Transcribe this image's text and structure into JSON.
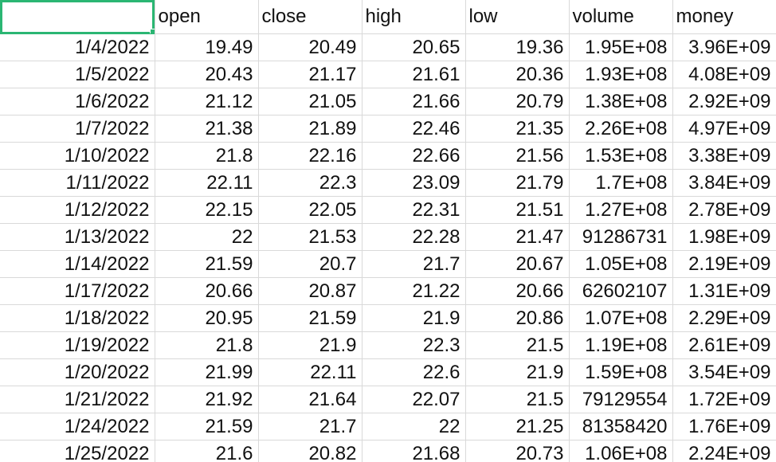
{
  "columns": [
    "",
    "open",
    "close",
    "high",
    "low",
    "volume",
    "money"
  ],
  "rows": [
    [
      "1/4/2022",
      "19.49",
      "20.49",
      "20.65",
      "19.36",
      "1.95E+08",
      "3.96E+09"
    ],
    [
      "1/5/2022",
      "20.43",
      "21.17",
      "21.61",
      "20.36",
      "1.93E+08",
      "4.08E+09"
    ],
    [
      "1/6/2022",
      "21.12",
      "21.05",
      "21.66",
      "20.79",
      "1.38E+08",
      "2.92E+09"
    ],
    [
      "1/7/2022",
      "21.38",
      "21.89",
      "22.46",
      "21.35",
      "2.26E+08",
      "4.97E+09"
    ],
    [
      "1/10/2022",
      "21.8",
      "22.16",
      "22.66",
      "21.56",
      "1.53E+08",
      "3.38E+09"
    ],
    [
      "1/11/2022",
      "22.11",
      "22.3",
      "23.09",
      "21.79",
      "1.7E+08",
      "3.84E+09"
    ],
    [
      "1/12/2022",
      "22.15",
      "22.05",
      "22.31",
      "21.51",
      "1.27E+08",
      "2.78E+09"
    ],
    [
      "1/13/2022",
      "22",
      "21.53",
      "22.28",
      "21.47",
      "91286731",
      "1.98E+09"
    ],
    [
      "1/14/2022",
      "21.59",
      "20.7",
      "21.7",
      "20.67",
      "1.05E+08",
      "2.19E+09"
    ],
    [
      "1/17/2022",
      "20.66",
      "20.87",
      "21.22",
      "20.66",
      "62602107",
      "1.31E+09"
    ],
    [
      "1/18/2022",
      "20.95",
      "21.59",
      "21.9",
      "20.86",
      "1.07E+08",
      "2.29E+09"
    ],
    [
      "1/19/2022",
      "21.8",
      "21.9",
      "22.3",
      "21.5",
      "1.19E+08",
      "2.61E+09"
    ],
    [
      "1/20/2022",
      "21.99",
      "22.11",
      "22.6",
      "21.9",
      "1.59E+08",
      "3.54E+09"
    ],
    [
      "1/21/2022",
      "21.92",
      "21.64",
      "22.07",
      "21.5",
      "79129554",
      "1.72E+09"
    ],
    [
      "1/24/2022",
      "21.59",
      "21.7",
      "22",
      "21.25",
      "81358420",
      "1.76E+09"
    ],
    [
      "1/25/2022",
      "21.6",
      "20.82",
      "21.68",
      "20.73",
      "1.06E+08",
      "2.24E+09"
    ]
  ],
  "colors": {
    "selection": "#2bb673",
    "gridline": "#d9d9d9"
  }
}
